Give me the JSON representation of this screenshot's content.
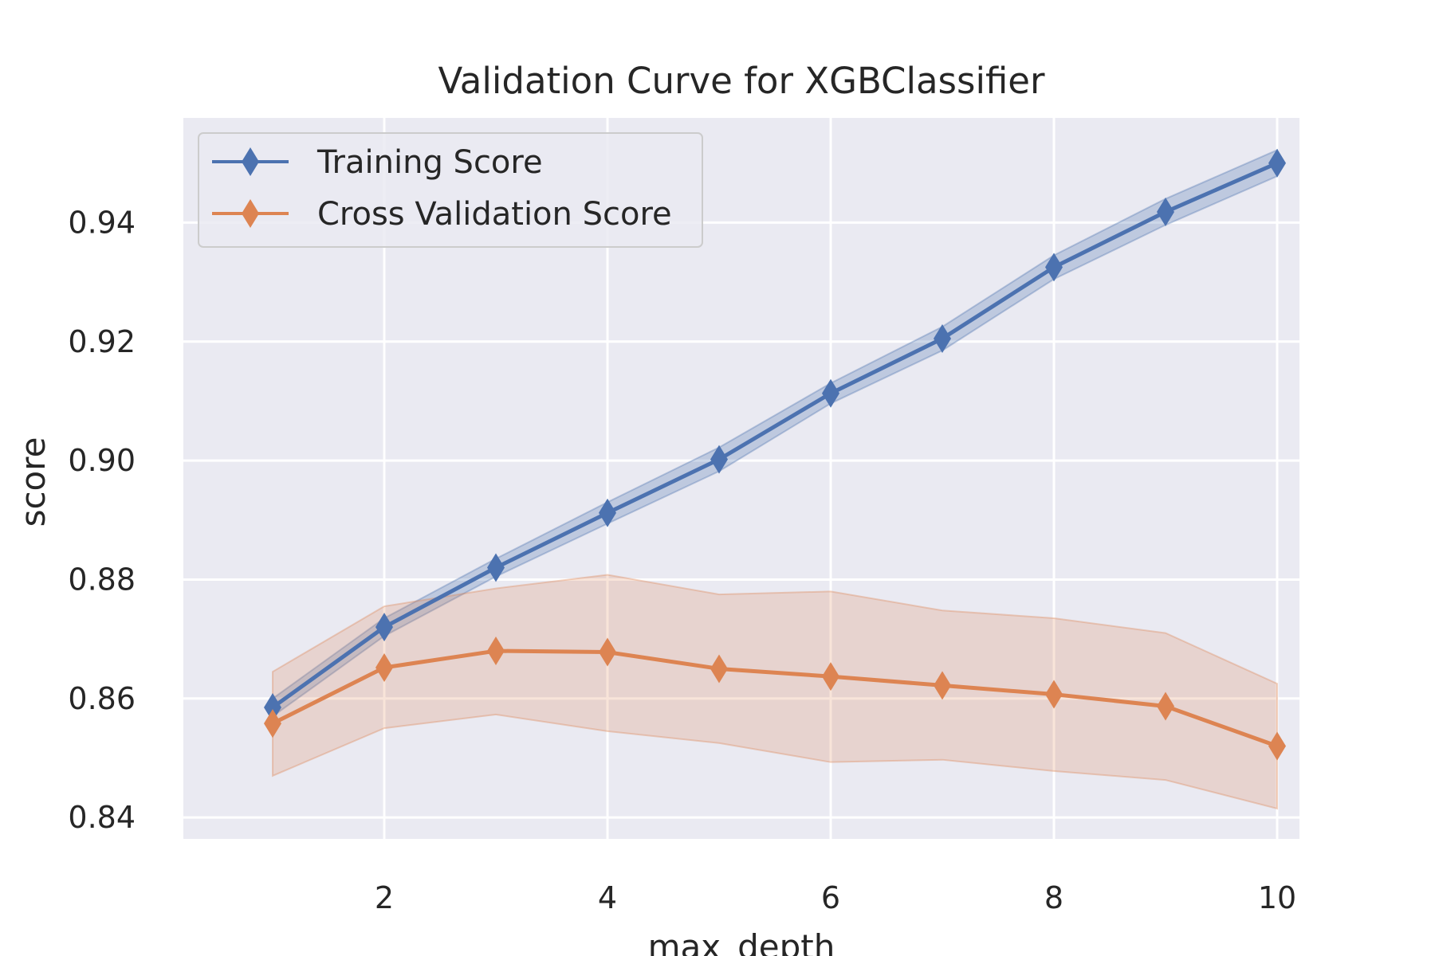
{
  "chart_data": {
    "type": "line",
    "title": "Validation Curve for XGBClassifier",
    "xlabel": "max_depth",
    "ylabel": "score",
    "x": [
      1,
      2,
      3,
      4,
      5,
      6,
      7,
      8,
      9,
      10
    ],
    "xlim": [
      0.2,
      10.2
    ],
    "ylim": [
      0.8364,
      0.9576
    ],
    "xticks": [
      2,
      4,
      6,
      8,
      10
    ],
    "xtick_labels": [
      "2",
      "4",
      "6",
      "8",
      "10"
    ],
    "yticks": [
      0.84,
      0.86,
      0.88,
      0.9,
      0.92,
      0.94
    ],
    "ytick_labels": [
      "0.84",
      "0.86",
      "0.88",
      "0.90",
      "0.92",
      "0.94"
    ],
    "grid": true,
    "legend_position": "upper-left",
    "series": [
      {
        "name": "Training Score",
        "color": "#4c72b0",
        "marker": "diamond",
        "values": [
          0.8585,
          0.872,
          0.882,
          0.8912,
          0.9002,
          0.9113,
          0.9205,
          0.9325,
          0.9418,
          0.95
        ],
        "upper": [
          0.86,
          0.8735,
          0.8835,
          0.893,
          0.9022,
          0.913,
          0.9225,
          0.9345,
          0.944,
          0.9522
        ],
        "lower": [
          0.857,
          0.8705,
          0.8805,
          0.8894,
          0.8982,
          0.9096,
          0.9185,
          0.9305,
          0.9396,
          0.9478
        ]
      },
      {
        "name": "Cross Validation Score",
        "color": "#dd8452",
        "marker": "diamond",
        "values": [
          0.8558,
          0.8652,
          0.868,
          0.8678,
          0.865,
          0.8637,
          0.8622,
          0.8607,
          0.8587,
          0.852
        ],
        "upper": [
          0.8645,
          0.8755,
          0.8785,
          0.8808,
          0.8775,
          0.878,
          0.8748,
          0.8735,
          0.871,
          0.8625
        ],
        "lower": [
          0.847,
          0.855,
          0.8573,
          0.8545,
          0.8525,
          0.8493,
          0.8497,
          0.8478,
          0.8463,
          0.8415
        ]
      }
    ]
  }
}
